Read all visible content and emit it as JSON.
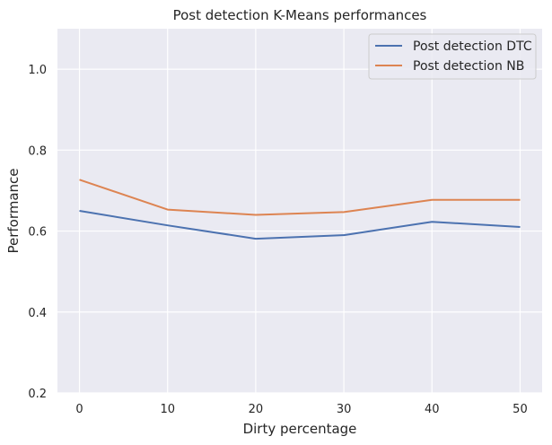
{
  "chart_data": {
    "type": "line",
    "title": "Post detection K-Means performances",
    "xlabel": "Dirty percentage",
    "ylabel": "Performance",
    "x": [
      0,
      10,
      20,
      30,
      40,
      50
    ],
    "xlim": [
      -2.5,
      52.5
    ],
    "ylim": [
      0.2,
      1.1
    ],
    "xticks": [
      0,
      10,
      20,
      30,
      40,
      50
    ],
    "yticks": [
      0.2,
      0.4,
      0.6,
      0.8,
      1.0
    ],
    "grid": true,
    "legend_position": "top-right",
    "series": [
      {
        "name": "Post detection DTC",
        "color": "#4c72b0",
        "values": [
          0.65,
          0.614,
          0.581,
          0.59,
          0.623,
          0.61
        ]
      },
      {
        "name": "Post detection NB",
        "color": "#dd8452",
        "values": [
          0.727,
          0.653,
          0.64,
          0.647,
          0.677,
          0.677
        ]
      }
    ],
    "background_color": "#eaeaf2",
    "grid_color": "#ffffff"
  }
}
